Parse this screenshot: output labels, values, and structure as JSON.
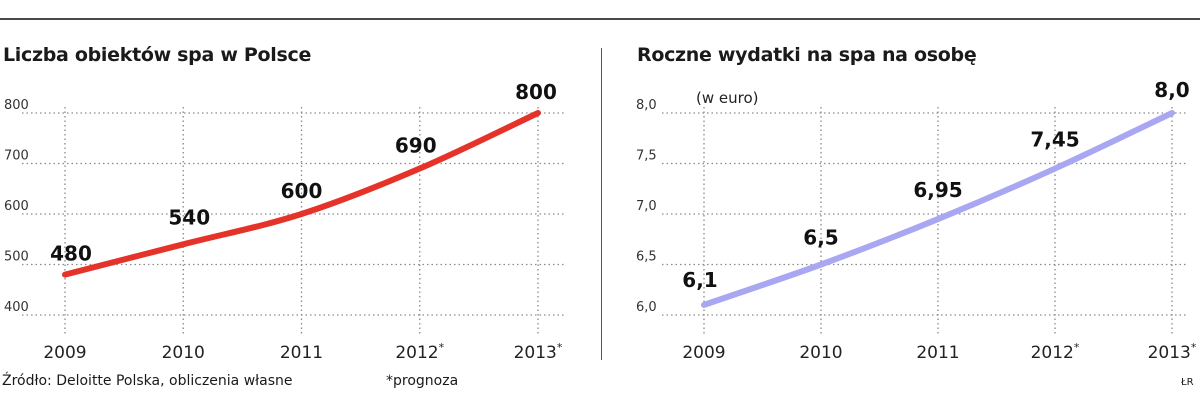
{
  "chart_data": [
    {
      "type": "line",
      "title": "Liczba obiektów spa w Polsce",
      "subtitle": "",
      "categories": [
        "2009",
        "2010",
        "2011",
        "2012*",
        "2013*"
      ],
      "values": [
        480,
        540,
        600,
        690,
        800
      ],
      "value_labels": [
        "480",
        "540",
        "600",
        "690",
        "800"
      ],
      "yticks": [
        "400",
        "500",
        "600",
        "700",
        "800"
      ],
      "ylim": [
        400,
        800
      ],
      "color": "#e5332a",
      "grid": true
    },
    {
      "type": "line",
      "title": "Roczne wydatki na spa na osobę",
      "subtitle": "(w euro)",
      "categories": [
        "2009",
        "2010",
        "2011",
        "2012*",
        "2013*"
      ],
      "values": [
        6.1,
        6.5,
        6.95,
        7.45,
        8.0
      ],
      "value_labels": [
        "6,1",
        "6,5",
        "6,95",
        "7,45",
        "8,0"
      ],
      "yticks": [
        "6,0",
        "6,5",
        "7,0",
        "7,5",
        "8,0"
      ],
      "ylim": [
        6.0,
        8.0
      ],
      "color": "#a9a6f2",
      "grid": true
    }
  ],
  "footer": {
    "source": "Źródło: Deloitte Polska, obliczenia własne",
    "note": "*prognoza",
    "initials": "ŁR"
  }
}
